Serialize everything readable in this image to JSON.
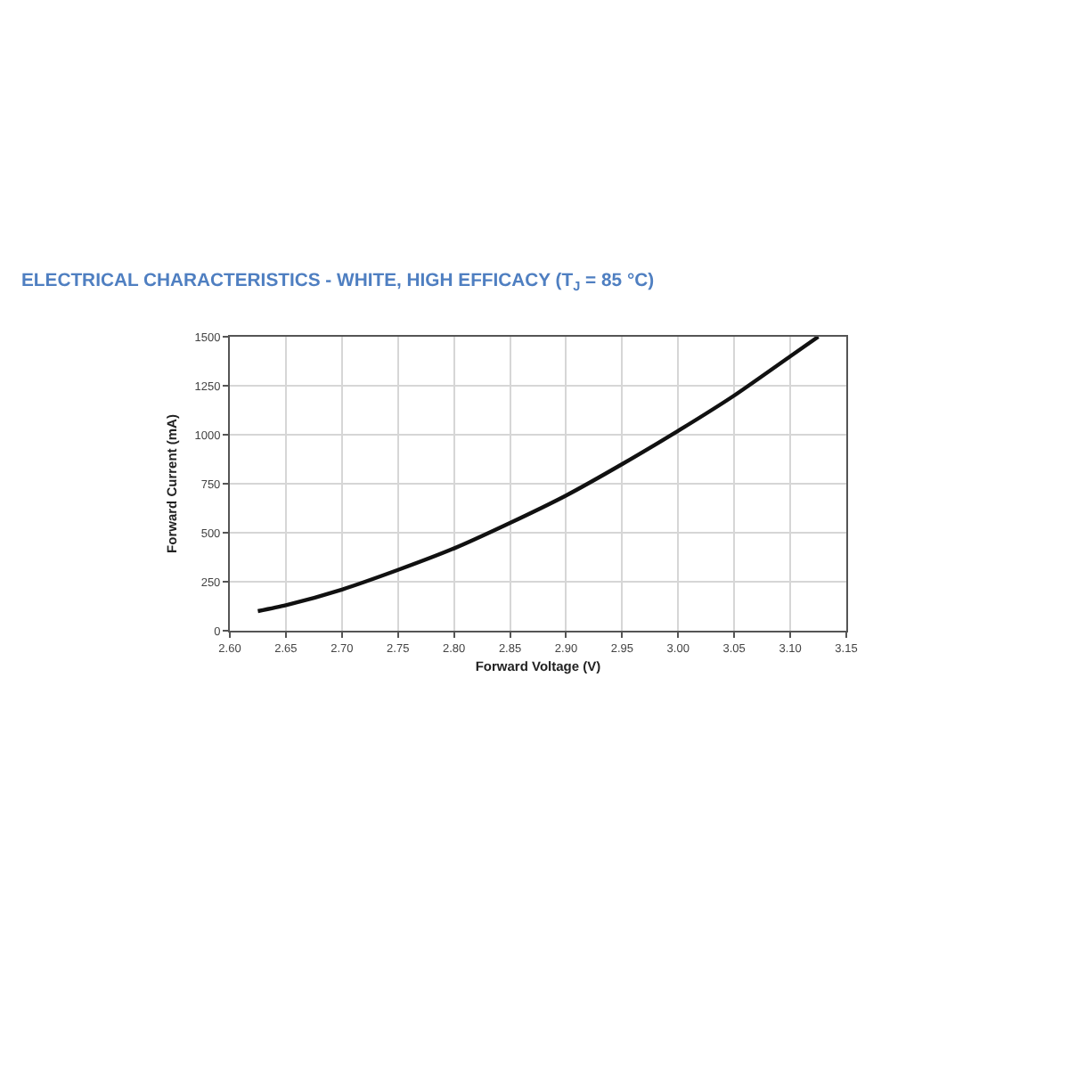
{
  "chart_data": {
    "type": "line",
    "title": "ELECTRICAL CHARACTERISTICS - WHITE, HIGH EFFICACY (T$_{J}$ = 85 °C)",
    "xlabel": "Forward Voltage (V)",
    "ylabel": "Forward Current (mA)",
    "series": [
      {
        "color": "#111111",
        "x": [
          2.625,
          2.65,
          2.7,
          2.75,
          2.8,
          2.85,
          2.9,
          2.95,
          3.0,
          3.05,
          3.1,
          3.125
        ],
        "values": [
          100,
          130,
          210,
          310,
          420,
          550,
          690,
          850,
          1020,
          1200,
          1400,
          1500
        ]
      }
    ],
    "xlim": [
      2.6,
      3.15
    ],
    "xticks": [
      {
        "value": 2.6,
        "label": "2.60"
      },
      2.65,
      {
        "value": 2.7,
        "label": "2.70"
      },
      2.75,
      {
        "value": 2.8,
        "label": "2.80"
      },
      2.85,
      {
        "value": 2.9,
        "label": "2.90"
      },
      2.95,
      {
        "value": 3.0,
        "label": "3.00"
      },
      3.05,
      {
        "value": 3.1,
        "label": "3.10"
      },
      3.15
    ],
    "ylim": [
      0,
      1500
    ],
    "yticks": [
      0,
      250,
      500,
      750,
      1000,
      1250,
      1500
    ],
    "grid": true
  }
}
